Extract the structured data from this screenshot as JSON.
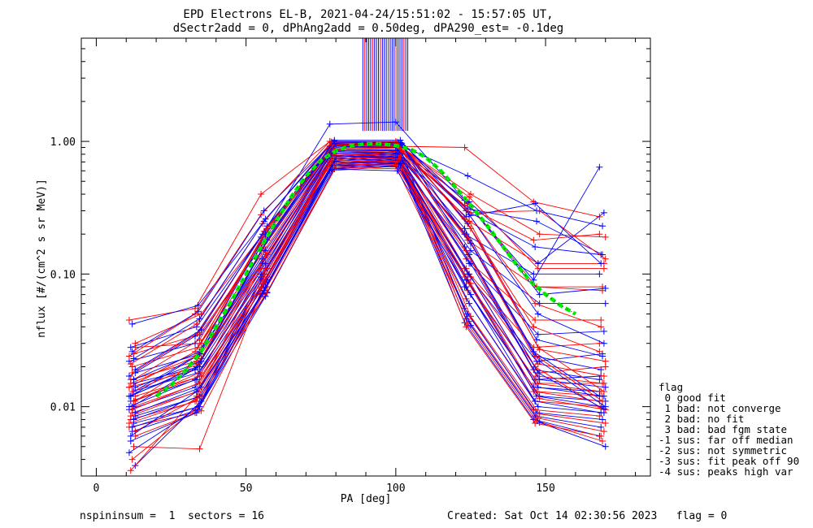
{
  "chart_data": {
    "type": "line",
    "title": "EPD Electrons EL-B, 2021-04-24/15:51:02 - 15:57:05 UT,",
    "subtitle": "dSectr2add = 0, dPhAng2add = 0.50deg, dPA290_est=  -0.1deg",
    "xlabel": "PA [deg]",
    "ylabel": "nflux [#/(cm^2 s sr MeV)]",
    "xlim": [
      -5,
      185
    ],
    "ylim": [
      0.003,
      6.0
    ],
    "yscale": "log",
    "xticks": [
      0,
      50,
      100,
      150
    ],
    "xtick_labels": [
      "0",
      "50",
      "100",
      "150"
    ],
    "yticks": [
      0.01,
      0.1,
      1.0
    ],
    "ytick_labels": [
      "0.01",
      "0.10",
      "1.00"
    ],
    "grid": false,
    "pa_bins": [
      12,
      34,
      56,
      79,
      101,
      124,
      147,
      169
    ],
    "colors": {
      "blue": "#0000ff",
      "red": "#ff0000",
      "fit": "#00ee00",
      "fit_dots": "#000000"
    },
    "series": [
      {
        "values": [
          0.045,
          0.055,
          0.4,
          1.0,
          0.92,
          0.9,
          0.35,
          0.27
        ]
      },
      {
        "values": [
          0.042,
          0.058,
          0.25,
          0.98,
          0.95,
          0.55,
          0.3,
          0.23
        ]
      },
      {
        "values": [
          0.03,
          0.05,
          0.22,
          0.95,
          0.9,
          0.4,
          0.2,
          0.19
        ]
      },
      {
        "values": [
          0.028,
          0.04,
          0.2,
          0.93,
          0.92,
          0.3,
          0.16,
          0.14
        ]
      },
      {
        "values": [
          0.025,
          0.035,
          0.18,
          0.9,
          0.88,
          0.25,
          0.12,
          0.12
        ]
      },
      {
        "values": [
          0.022,
          0.03,
          0.16,
          0.88,
          0.85,
          0.2,
          0.1,
          0.1
        ]
      },
      {
        "values": [
          0.02,
          0.028,
          0.15,
          0.86,
          0.82,
          0.18,
          0.08,
          0.08
        ]
      },
      {
        "values": [
          0.018,
          0.025,
          0.14,
          0.84,
          0.8,
          0.15,
          0.06,
          0.06
        ]
      },
      {
        "values": [
          0.016,
          0.022,
          0.13,
          0.82,
          0.78,
          0.13,
          0.045,
          0.045
        ]
      },
      {
        "values": [
          0.015,
          0.02,
          0.12,
          0.8,
          0.76,
          0.12,
          0.035,
          0.037
        ]
      },
      {
        "values": [
          0.014,
          0.019,
          0.11,
          0.79,
          0.75,
          0.11,
          0.028,
          0.03
        ]
      },
      {
        "values": [
          0.013,
          0.018,
          0.1,
          0.78,
          0.74,
          0.1,
          0.022,
          0.025
        ]
      },
      {
        "values": [
          0.012,
          0.017,
          0.095,
          0.76,
          0.73,
          0.095,
          0.018,
          0.02
        ]
      },
      {
        "values": [
          0.011,
          0.016,
          0.09,
          0.74,
          0.72,
          0.09,
          0.016,
          0.017
        ]
      },
      {
        "values": [
          0.01,
          0.015,
          0.085,
          0.72,
          0.71,
          0.085,
          0.015,
          0.015
        ]
      },
      {
        "values": [
          0.0095,
          0.014,
          0.08,
          0.7,
          0.7,
          0.08,
          0.014,
          0.013
        ]
      },
      {
        "values": [
          0.009,
          0.013,
          0.075,
          0.68,
          0.69,
          0.075,
          0.013,
          0.012
        ]
      },
      {
        "values": [
          0.0085,
          0.012,
          0.072,
          0.66,
          0.68,
          0.07,
          0.012,
          0.011
        ]
      },
      {
        "values": [
          0.008,
          0.011,
          0.07,
          0.64,
          0.67,
          0.065,
          0.011,
          0.01
        ]
      },
      {
        "values": [
          0.0075,
          0.01,
          0.068,
          0.62,
          0.66,
          0.06,
          0.01,
          0.009
        ]
      },
      {
        "values": [
          0.007,
          0.009,
          0.07,
          0.6,
          0.65,
          0.055,
          0.0095,
          0.0085
        ]
      },
      {
        "values": [
          0.0065,
          0.0095,
          0.075,
          0.62,
          0.7,
          0.05,
          0.009,
          0.008
        ]
      },
      {
        "values": [
          0.006,
          0.0093,
          0.08,
          0.64,
          0.72,
          0.048,
          0.0088,
          0.0075
        ]
      },
      {
        "values": [
          0.0055,
          0.009,
          0.085,
          0.66,
          0.74,
          0.046,
          0.0085,
          0.007
        ]
      },
      {
        "values": [
          0.005,
          0.0048,
          0.09,
          0.68,
          0.76,
          0.044,
          0.0082,
          0.0065
        ]
      },
      {
        "values": [
          0.0045,
          0.0095,
          0.095,
          0.7,
          0.78,
          0.043,
          0.008,
          0.006
        ]
      },
      {
        "values": [
          0.004,
          0.01,
          0.1,
          0.72,
          0.8,
          0.042,
          0.0078,
          0.0055
        ]
      },
      {
        "values": [
          0.0036,
          0.011,
          0.11,
          0.74,
          0.82,
          0.041,
          0.0076,
          0.005
        ]
      },
      {
        "values": [
          0.0033,
          0.012,
          0.12,
          0.76,
          0.84,
          0.04,
          0.0075,
          0.006
        ]
      },
      {
        "values": [
          0.013,
          0.025,
          0.15,
          0.85,
          0.85,
          0.35,
          0.12,
          0.29
        ]
      },
      {
        "values": [
          0.014,
          0.026,
          0.17,
          0.9,
          0.9,
          0.33,
          0.18,
          0.2
        ]
      },
      {
        "values": [
          0.01,
          0.02,
          0.16,
          0.88,
          0.86,
          0.31,
          0.25,
          0.14
        ]
      },
      {
        "values": [
          0.011,
          0.023,
          0.14,
          0.86,
          0.84,
          0.29,
          0.3,
          0.13
        ]
      },
      {
        "values": [
          0.012,
          0.024,
          0.13,
          0.84,
          0.82,
          0.27,
          0.34,
          0.12
        ]
      },
      {
        "values": [
          0.016,
          0.032,
          0.2,
          0.92,
          0.92,
          0.38,
          0.11,
          0.11
        ]
      },
      {
        "values": [
          0.017,
          0.034,
          0.19,
          1.35,
          1.4,
          0.36,
          0.09,
          0.64
        ]
      },
      {
        "values": [
          0.018,
          0.036,
          0.21,
          0.95,
          0.95,
          0.34,
          0.08,
          0.075
        ]
      },
      {
        "values": [
          0.019,
          0.038,
          0.23,
          0.97,
          0.97,
          0.32,
          0.07,
          0.078
        ]
      },
      {
        "values": [
          0.021,
          0.042,
          0.24,
          0.99,
          0.99,
          0.3,
          0.06,
          0.04
        ]
      },
      {
        "values": [
          0.023,
          0.046,
          0.26,
          1.02,
          1.02,
          0.28,
          0.05,
          0.03
        ]
      },
      {
        "values": [
          0.024,
          0.05,
          0.28,
          1.0,
          1.0,
          0.26,
          0.04,
          0.026
        ]
      },
      {
        "values": [
          0.026,
          0.052,
          0.3,
          0.98,
          0.98,
          0.24,
          0.032,
          0.024
        ]
      },
      {
        "values": [
          0.028,
          0.03,
          0.22,
          0.94,
          0.94,
          0.22,
          0.027,
          0.022
        ]
      },
      {
        "values": [
          0.012,
          0.02,
          0.12,
          0.82,
          0.8,
          0.2,
          0.024,
          0.019
        ]
      },
      {
        "values": [
          0.011,
          0.018,
          0.11,
          0.8,
          0.78,
          0.18,
          0.021,
          0.017
        ]
      },
      {
        "values": [
          0.01,
          0.016,
          0.1,
          0.78,
          0.76,
          0.16,
          0.019,
          0.016
        ]
      },
      {
        "values": [
          0.0095,
          0.015,
          0.095,
          0.76,
          0.74,
          0.14,
          0.017,
          0.015
        ]
      },
      {
        "values": [
          0.009,
          0.014,
          0.09,
          0.74,
          0.72,
          0.12,
          0.016,
          0.014
        ]
      },
      {
        "values": [
          0.0085,
          0.013,
          0.085,
          0.72,
          0.7,
          0.11,
          0.015,
          0.013
        ]
      },
      {
        "values": [
          0.008,
          0.012,
          0.08,
          0.7,
          0.68,
          0.1,
          0.014,
          0.012
        ]
      },
      {
        "values": [
          0.0075,
          0.011,
          0.078,
          0.68,
          0.66,
          0.095,
          0.013,
          0.011
        ]
      },
      {
        "values": [
          0.007,
          0.01,
          0.075,
          0.66,
          0.64,
          0.09,
          0.012,
          0.01
        ]
      },
      {
        "values": [
          0.0065,
          0.012,
          0.073,
          0.64,
          0.62,
          0.085,
          0.0115,
          0.0095
        ]
      },
      {
        "values": [
          0.006,
          0.013,
          0.071,
          0.62,
          0.6,
          0.08,
          0.011,
          0.009
        ]
      },
      {
        "values": [
          0.011,
          0.017,
          0.14,
          0.9,
          0.88,
          0.25,
          0.028,
          0.013
        ]
      },
      {
        "values": [
          0.012,
          0.019,
          0.15,
          0.92,
          0.9,
          0.22,
          0.026,
          0.012
        ]
      },
      {
        "values": [
          0.013,
          0.021,
          0.16,
          0.94,
          0.92,
          0.19,
          0.024,
          0.011
        ]
      },
      {
        "values": [
          0.014,
          0.022,
          0.18,
          0.96,
          0.94,
          0.17,
          0.022,
          0.01
        ]
      },
      {
        "values": [
          0.015,
          0.024,
          0.19,
          0.98,
          0.96,
          0.15,
          0.02,
          0.0098
        ]
      },
      {
        "values": [
          0.016,
          0.026,
          0.2,
          1.0,
          0.98,
          0.14,
          0.018,
          0.0096
        ]
      }
    ],
    "fit": {
      "pa": [
        20,
        25,
        30,
        35,
        40,
        45,
        50,
        55,
        60,
        65,
        70,
        75,
        80,
        85,
        90,
        95,
        100,
        105,
        110,
        115,
        120,
        125,
        130,
        135,
        140,
        145,
        150,
        155,
        160
      ],
      "values": [
        0.012,
        0.0145,
        0.019,
        0.026,
        0.04,
        0.062,
        0.1,
        0.16,
        0.25,
        0.38,
        0.55,
        0.72,
        0.85,
        0.93,
        0.96,
        0.96,
        0.93,
        0.87,
        0.76,
        0.6,
        0.45,
        0.33,
        0.24,
        0.17,
        0.12,
        0.088,
        0.07,
        0.058,
        0.05
      ]
    },
    "peak_marker": {
      "pa_min": 89,
      "pa_max": 104,
      "y_from": 1.2,
      "y_to": 6.0,
      "count": 24
    },
    "legend": {
      "title": "flag",
      "entries": [
        " 0 good fit",
        " 1 bad: not converge",
        " 2 bad: no fit",
        " 3 bad: bad fgm state",
        "-1 sus: far off median",
        "-2 sus: not symmetric",
        "-3 sus: fit peak off 90",
        "-4 sus: peaks high var"
      ]
    },
    "footer_left": "nspininsum =  1  sectors = 16",
    "footer_right": "Created: Sat Oct 14 02:30:56 2023   flag = 0"
  }
}
